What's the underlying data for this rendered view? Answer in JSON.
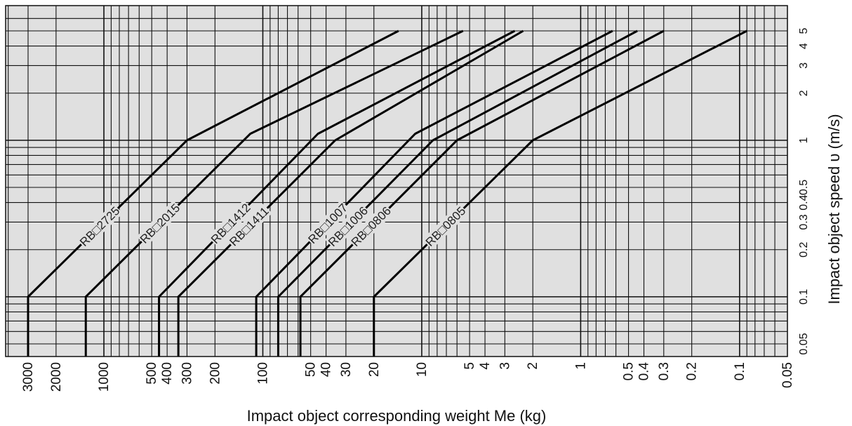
{
  "chart_data": {
    "type": "line",
    "x_scale": "log",
    "y_scale": "log",
    "x_reversed": true,
    "grid": true,
    "xlabel": "Impact object corresponding weight Me (kg)",
    "ylabel": "Impact object speed   υ (m/s)",
    "xlim": [
      0.05,
      5000
    ],
    "ylim": [
      0.04,
      6
    ],
    "x_ticks": [
      {
        "value": 3000,
        "label": "3000"
      },
      {
        "value": 2000,
        "label": "2000"
      },
      {
        "value": 1000,
        "label": "1000"
      },
      {
        "value": 500,
        "label": "500"
      },
      {
        "value": 400,
        "label": "400"
      },
      {
        "value": 300,
        "label": "300"
      },
      {
        "value": 200,
        "label": "200"
      },
      {
        "value": 100,
        "label": "100"
      },
      {
        "value": 50,
        "label": "50"
      },
      {
        "value": 40,
        "label": "40"
      },
      {
        "value": 30,
        "label": "30"
      },
      {
        "value": 20,
        "label": "20"
      },
      {
        "value": 10,
        "label": "10"
      },
      {
        "value": 5,
        "label": "5"
      },
      {
        "value": 4,
        "label": "4"
      },
      {
        "value": 3,
        "label": "3"
      },
      {
        "value": 2,
        "label": "2"
      },
      {
        "value": 1,
        "label": "1"
      },
      {
        "value": 0.5,
        "label": "0.5"
      },
      {
        "value": 0.4,
        "label": "0.4"
      },
      {
        "value": 0.3,
        "label": "0.3"
      },
      {
        "value": 0.2,
        "label": "0.2"
      },
      {
        "value": 0.1,
        "label": "0.1"
      },
      {
        "value": 0.05,
        "label": "0.05"
      }
    ],
    "y_ticks": [
      {
        "value": 0.05,
        "label": "0.05"
      },
      {
        "value": 0.1,
        "label": "0.1"
      },
      {
        "value": 0.2,
        "label": "0.2"
      },
      {
        "value": 0.3,
        "label": "0.3"
      },
      {
        "value": 0.4,
        "label": "0.4"
      },
      {
        "value": 0.5,
        "label": "0.5"
      },
      {
        "value": 1,
        "label": "1"
      },
      {
        "value": 2,
        "label": "2"
      },
      {
        "value": 3,
        "label": "3"
      },
      {
        "value": 4,
        "label": "4"
      },
      {
        "value": 5,
        "label": "5"
      }
    ],
    "series": [
      {
        "name": "RB□2725",
        "points": [
          [
            3000,
            0.04
          ],
          [
            3000,
            0.1
          ],
          [
            300,
            1
          ],
          [
            14,
            5
          ]
        ]
      },
      {
        "name": "RB□2015",
        "points": [
          [
            1300,
            0.04
          ],
          [
            1300,
            0.1
          ],
          [
            120,
            1.1
          ],
          [
            5.5,
            5
          ]
        ]
      },
      {
        "name": "RB□1412",
        "points": [
          [
            450,
            0.04
          ],
          [
            450,
            0.1
          ],
          [
            45,
            1.1
          ],
          [
            2.6,
            5
          ]
        ]
      },
      {
        "name": "RB□1411",
        "points": [
          [
            340,
            0.04
          ],
          [
            340,
            0.1
          ],
          [
            35,
            1
          ],
          [
            2.3,
            5
          ]
        ]
      },
      {
        "name": "RB□1007",
        "points": [
          [
            110,
            0.04
          ],
          [
            110,
            0.1
          ],
          [
            11,
            1.1
          ],
          [
            0.63,
            5
          ]
        ]
      },
      {
        "name": "RB□1006",
        "points": [
          [
            80,
            0.04
          ],
          [
            80,
            0.1
          ],
          [
            8.5,
            1
          ],
          [
            0.44,
            5
          ]
        ]
      },
      {
        "name": "RB□0806",
        "points": [
          [
            58,
            0.04
          ],
          [
            58,
            0.1
          ],
          [
            6,
            1
          ],
          [
            0.3,
            5
          ]
        ]
      },
      {
        "name": "RB□0805",
        "points": [
          [
            20,
            0.04
          ],
          [
            20,
            0.1
          ],
          [
            2,
            1
          ],
          [
            0.09,
            5
          ]
        ]
      }
    ],
    "colors": {
      "plot_background": "#e0e0e0",
      "grid": "#111111",
      "line": "#000000"
    }
  }
}
